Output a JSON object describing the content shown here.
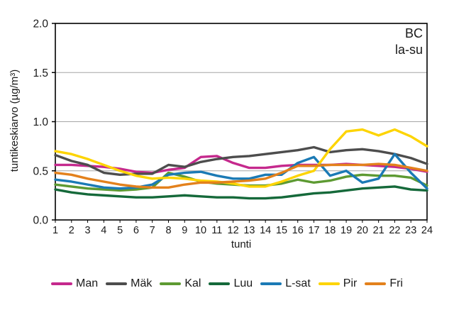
{
  "chart_data": {
    "type": "line",
    "title": "",
    "corner_labels": {
      "line1": "BC",
      "line2": "la-su"
    },
    "xlabel": "tunti",
    "ylabel": "tuntikeskiarvo (µg/m³)",
    "ylim": [
      0,
      2.0
    ],
    "grid": "horizontal",
    "legend_position": "bottom",
    "axis_color": "#000000",
    "gridline_color": "#a6a6a6",
    "x": [
      1,
      2,
      3,
      4,
      5,
      6,
      7,
      8,
      9,
      10,
      11,
      12,
      13,
      14,
      15,
      16,
      17,
      18,
      19,
      20,
      21,
      22,
      23,
      24
    ],
    "yticks": [
      {
        "value": 0.0,
        "label": "0.0"
      },
      {
        "value": 0.5,
        "label": "0.5"
      },
      {
        "value": 1.0,
        "label": "1.0"
      },
      {
        "value": 1.5,
        "label": "1.5"
      },
      {
        "value": 2.0,
        "label": "2.0"
      }
    ],
    "series": [
      {
        "name": "Man",
        "color": "#c5298d",
        "values": [
          0.56,
          0.56,
          0.55,
          0.54,
          0.52,
          0.49,
          0.48,
          0.51,
          0.53,
          0.64,
          0.65,
          0.58,
          0.53,
          0.53,
          0.55,
          0.56,
          0.56,
          0.56,
          0.57,
          0.56,
          0.55,
          0.54,
          0.52,
          0.49
        ]
      },
      {
        "name": "Mäk",
        "color": "#4d4d4d",
        "values": [
          0.66,
          0.6,
          0.56,
          0.48,
          0.46,
          0.47,
          0.47,
          0.56,
          0.54,
          0.59,
          0.62,
          0.64,
          0.65,
          0.67,
          0.69,
          0.71,
          0.74,
          0.69,
          0.71,
          0.72,
          0.7,
          0.67,
          0.63,
          0.57
        ]
      },
      {
        "name": "Kal",
        "color": "#5d9a32",
        "values": [
          0.36,
          0.34,
          0.32,
          0.31,
          0.3,
          0.31,
          0.33,
          0.48,
          0.44,
          0.39,
          0.37,
          0.36,
          0.35,
          0.35,
          0.37,
          0.41,
          0.38,
          0.4,
          0.44,
          0.46,
          0.45,
          0.45,
          0.43,
          0.35
        ]
      },
      {
        "name": "Luu",
        "color": "#15693a",
        "values": [
          0.31,
          0.28,
          0.26,
          0.25,
          0.24,
          0.23,
          0.23,
          0.24,
          0.25,
          0.24,
          0.23,
          0.23,
          0.22,
          0.22,
          0.23,
          0.25,
          0.27,
          0.28,
          0.3,
          0.32,
          0.33,
          0.34,
          0.31,
          0.3
        ]
      },
      {
        "name": "L-sat",
        "color": "#1b7ab5",
        "values": [
          0.41,
          0.39,
          0.36,
          0.33,
          0.32,
          0.33,
          0.36,
          0.46,
          0.48,
          0.49,
          0.45,
          0.42,
          0.42,
          0.46,
          0.46,
          0.58,
          0.64,
          0.45,
          0.5,
          0.38,
          0.42,
          0.67,
          0.48,
          0.32
        ]
      },
      {
        "name": "Pir",
        "color": "#fdd400",
        "values": [
          0.7,
          0.67,
          0.62,
          0.56,
          0.5,
          0.45,
          0.42,
          0.43,
          0.42,
          0.4,
          0.39,
          0.37,
          0.34,
          0.34,
          0.39,
          0.45,
          0.5,
          0.72,
          0.9,
          0.92,
          0.86,
          0.92,
          0.85,
          0.75
        ]
      },
      {
        "name": "Fri",
        "color": "#e3811c",
        "values": [
          0.48,
          0.46,
          0.42,
          0.39,
          0.36,
          0.34,
          0.33,
          0.33,
          0.36,
          0.38,
          0.38,
          0.39,
          0.4,
          0.42,
          0.48,
          0.55,
          0.55,
          0.56,
          0.56,
          0.56,
          0.57,
          0.56,
          0.53,
          0.5
        ]
      }
    ]
  }
}
